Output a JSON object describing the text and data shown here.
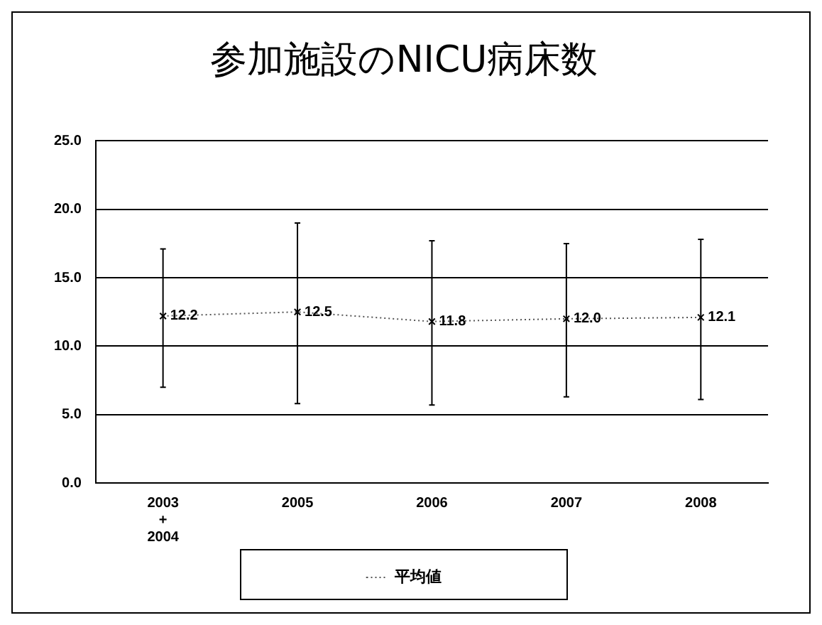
{
  "chart_data": {
    "type": "line",
    "title": "参加施設のNICU病床数",
    "categories": [
      "2003\n+\n2004",
      "2005",
      "2006",
      "2007",
      "2008"
    ],
    "series": [
      {
        "name": "平均値",
        "color": "#555555",
        "values": [
          12.2,
          12.5,
          11.8,
          12.0,
          12.1
        ],
        "value_labels": [
          "12.2",
          "12.5",
          "11.8",
          "12.0",
          "12.1"
        ],
        "errors": [
          [
            7.0,
            17.1
          ],
          [
            5.8,
            19.0
          ],
          [
            5.7,
            17.7
          ],
          [
            6.3,
            17.5
          ],
          [
            6.1,
            17.8
          ]
        ]
      }
    ],
    "ylim": [
      0,
      25
    ],
    "yticks": [
      {
        "value": 0,
        "label": "0.0"
      },
      {
        "value": 5,
        "label": "5.0"
      },
      {
        "value": 10,
        "label": "10.0"
      },
      {
        "value": 15,
        "label": "15.0"
      },
      {
        "value": 20,
        "label": "20.0"
      },
      {
        "value": 25,
        "label": "25.0"
      }
    ],
    "grid": "y",
    "legend": "bottom",
    "marker": "cross",
    "line_style": "dotted"
  }
}
